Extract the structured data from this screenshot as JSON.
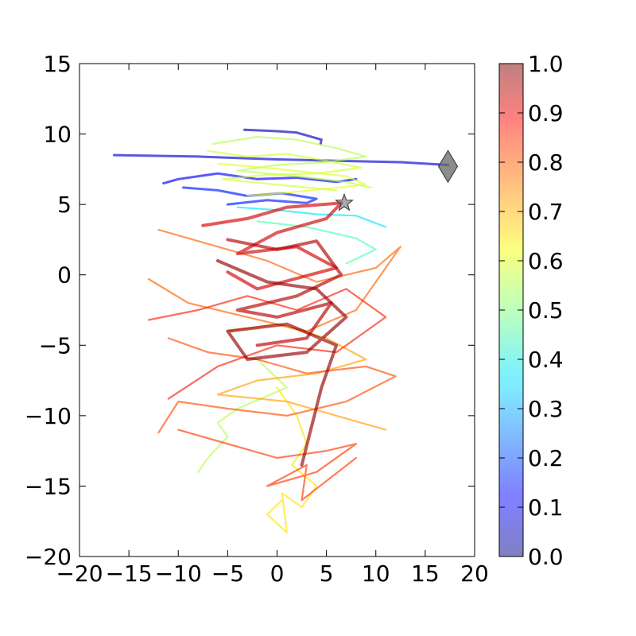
{
  "chart_data": {
    "type": "line",
    "title": "",
    "xlabel": "",
    "ylabel": "",
    "xlim": [
      -20,
      20
    ],
    "ylim": [
      -20,
      15
    ],
    "xticks": [
      -20,
      -15,
      -10,
      -5,
      0,
      5,
      10,
      15,
      20
    ],
    "yticks": [
      -20,
      -15,
      -10,
      -5,
      0,
      5,
      10,
      15
    ],
    "xtick_labels": [
      "−20",
      "−15",
      "−10",
      "−5",
      "0",
      "5",
      "10",
      "15",
      "20"
    ],
    "ytick_labels": [
      "−20",
      "−15",
      "−10",
      "−5",
      "0",
      "5",
      "10",
      "15"
    ],
    "grid": false,
    "colormap": "jet",
    "colorbar": {
      "range": [
        0.0,
        1.0
      ],
      "ticks": [
        0.0,
        0.1,
        0.2,
        0.3,
        0.4,
        0.5,
        0.6,
        0.7,
        0.8,
        0.9,
        1.0
      ],
      "tick_labels": [
        "0.0",
        "0.1",
        "0.2",
        "0.3",
        "0.4",
        "0.5",
        "0.6",
        "0.7",
        "0.8",
        "0.9",
        "1.0"
      ],
      "placement": "right"
    },
    "series": [
      {
        "value": 0.08,
        "x": [
          -16.5,
          -8.0,
          0.0,
          6.0,
          12.5,
          17.3
        ],
        "y": [
          8.5,
          8.4,
          8.2,
          8.1,
          8.0,
          7.8
        ]
      },
      {
        "value": 0.05,
        "x": [
          -3.3,
          0.0,
          2.0,
          4.5,
          4.4
        ],
        "y": [
          10.3,
          10.2,
          10.1,
          9.6,
          9.3
        ]
      },
      {
        "value": 0.12,
        "x": [
          -11.5,
          -10.0,
          -6.0,
          -2.0,
          2.0,
          6.0,
          8.0
        ],
        "y": [
          6.5,
          6.8,
          7.2,
          6.8,
          6.9,
          6.6,
          6.8
        ]
      },
      {
        "value": 0.15,
        "x": [
          -9.5,
          -6.0,
          -3.0,
          0.5,
          4.0,
          3.0,
          -1.0,
          -5.0
        ],
        "y": [
          6.2,
          6.0,
          5.6,
          5.8,
          5.4,
          5.1,
          5.3,
          5.0
        ]
      },
      {
        "value": 0.35,
        "x": [
          -4.0,
          0.0,
          4.0,
          8.0,
          11.0
        ],
        "y": [
          4.8,
          4.6,
          4.3,
          4.2,
          3.4
        ]
      },
      {
        "value": 0.45,
        "x": [
          -2.0,
          3.0,
          8.0,
          10.0,
          7.0
        ],
        "y": [
          3.8,
          3.4,
          2.6,
          1.8,
          0.8
        ]
      },
      {
        "value": 0.55,
        "x": [
          -6.5,
          -2.0,
          2.0,
          6.0,
          9.0,
          5.0,
          0.0,
          -4.0,
          2.0,
          7.0,
          9.5
        ],
        "y": [
          9.3,
          9.8,
          9.6,
          9.0,
          8.4,
          8.0,
          7.8,
          7.4,
          7.0,
          6.6,
          6.2
        ]
      },
      {
        "value": 0.58,
        "x": [
          -7.0,
          -3.0,
          1.0,
          5.0,
          8.5,
          4.0,
          -1.0,
          -5.5,
          0.0,
          6.0
        ],
        "y": [
          8.8,
          8.4,
          8.6,
          8.1,
          7.6,
          7.2,
          7.1,
          6.8,
          6.4,
          6.0
        ]
      },
      {
        "value": 0.6,
        "x": [
          -6.0,
          -1.0,
          3.0,
          7.0,
          9.0,
          2.0,
          -3.0
        ],
        "y": [
          7.9,
          7.6,
          7.3,
          7.0,
          6.4,
          5.9,
          5.6
        ]
      },
      {
        "value": 0.55,
        "x": [
          -2.0,
          1.0,
          -4.0,
          -6.0,
          -5.0,
          -7.0,
          -8.0
        ],
        "y": [
          -6.0,
          -8.0,
          -9.5,
          -10.5,
          -11.5,
          -13.0,
          -14.0
        ]
      },
      {
        "value": 0.65,
        "x": [
          0.0,
          2.0,
          3.0,
          1.5,
          4.0,
          2.5,
          0.5,
          1.0,
          -1.0,
          0.5
        ],
        "y": [
          -8.0,
          -10.0,
          -12.0,
          -13.5,
          -15.0,
          -16.5,
          -15.5,
          -18.3,
          -17.0,
          -16.0
        ]
      },
      {
        "value": 0.72,
        "x": [
          -5.0,
          0.0,
          5.0,
          9.0,
          4.0,
          -2.0,
          -6.0,
          1.0,
          6.0,
          11.0
        ],
        "y": [
          -4.0,
          -3.5,
          -4.5,
          -6.0,
          -7.0,
          -7.5,
          -8.5,
          -9.0,
          -10.0,
          -11.0
        ]
      },
      {
        "value": 0.78,
        "x": [
          -12.0,
          -6.0,
          -1.0,
          4.0,
          10.0,
          12.5,
          8.0,
          3.0,
          -3.0,
          -9.0,
          -13.0
        ],
        "y": [
          3.2,
          2.0,
          1.0,
          -0.5,
          0.5,
          2.0,
          -2.5,
          -4.0,
          -3.0,
          -2.0,
          -0.3
        ]
      },
      {
        "value": 0.8,
        "x": [
          -11.0,
          -7.0,
          -2.0,
          3.0,
          9.0,
          12.0,
          7.0,
          1.0,
          -5.0,
          -10.0,
          -12.0
        ],
        "y": [
          -4.5,
          -5.5,
          -6.0,
          -7.0,
          -6.5,
          -7.2,
          -9.0,
          -10.0,
          -9.5,
          -9.0,
          -11.2
        ]
      },
      {
        "value": 0.82,
        "x": [
          -10.0,
          -5.0,
          0.0,
          5.0,
          8.0,
          4.0,
          -1.0,
          3.0,
          2.5,
          8.0
        ],
        "y": [
          -11.0,
          -12.0,
          -13.0,
          -12.5,
          -12.0,
          -14.0,
          -15.0,
          -13.5,
          -16.0,
          -13.0
        ]
      },
      {
        "value": 0.85,
        "x": [
          -13.0,
          -8.0,
          -3.0,
          2.0,
          7.0,
          11.0,
          6.0,
          0.0,
          -6.0,
          -11.0
        ],
        "y": [
          -3.2,
          -2.5,
          -1.5,
          -2.5,
          -1.0,
          -3.0,
          -5.5,
          -5.0,
          -6.5,
          -8.8
        ]
      },
      {
        "value": 0.92,
        "x": [
          -7.5,
          -3.0,
          1.0,
          6.5,
          5.0,
          0.0,
          -4.0,
          2.0,
          6.0,
          -2.0,
          -5.0
        ],
        "y": [
          3.5,
          4.0,
          4.8,
          5.1,
          4.0,
          3.0,
          1.5,
          2.0,
          0.5,
          -1.0,
          0.2
        ]
      },
      {
        "value": 0.95,
        "x": [
          -5.0,
          0.0,
          4.0,
          6.5,
          2.0,
          -4.0,
          0.0,
          5.5,
          3.0,
          -2.0
        ],
        "y": [
          2.5,
          1.8,
          2.4,
          0.0,
          -1.5,
          -2.5,
          -3.0,
          -2.0,
          -4.5,
          -5.0
        ]
      },
      {
        "value": 0.98,
        "x": [
          -6.0,
          -1.0,
          4.0,
          7.0,
          3.0,
          -3.0,
          -5.0,
          1.0,
          6.0,
          4.5,
          2.5
        ],
        "y": [
          1.0,
          -0.5,
          -1.0,
          -3.0,
          -5.5,
          -6.0,
          -4.0,
          -3.5,
          -5.0,
          -8.0,
          -13.5
        ]
      }
    ],
    "markers": [
      {
        "shape": "diamond",
        "x": 17.3,
        "y": 7.7,
        "color": "#666666"
      },
      {
        "shape": "star",
        "x": 6.8,
        "y": 5.1,
        "color": "#666666"
      }
    ]
  }
}
